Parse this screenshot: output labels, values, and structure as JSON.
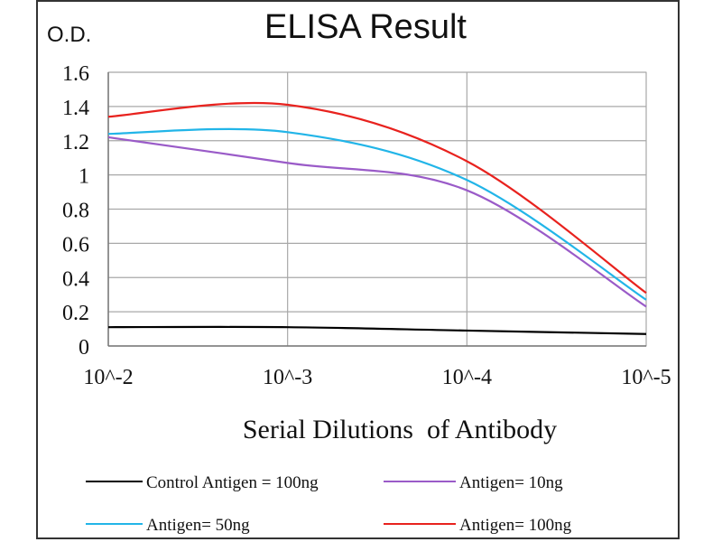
{
  "chart_data": {
    "type": "line",
    "title": "ELISA Result",
    "ylabel": "O.D.",
    "xlabel": "Serial Dilutions  of Antibody",
    "x": [
      "10^-2",
      "10^-3",
      "10^-4",
      "10^-5"
    ],
    "ylim": [
      0,
      1.6
    ],
    "yticks": [
      "0",
      "0.2",
      "0.4",
      "0.6",
      "0.8",
      "1",
      "1.2",
      "1.4",
      "1.6"
    ],
    "grid": true,
    "legend_position": "bottom",
    "series": [
      {
        "name": "Control Antigen = 100ng",
        "color": "#000000",
        "values": [
          0.11,
          0.11,
          0.09,
          0.07
        ]
      },
      {
        "name": "Antigen= 10ng",
        "color": "#9a5bc8",
        "values": [
          1.22,
          1.07,
          0.91,
          0.23
        ]
      },
      {
        "name": "Antigen= 50ng",
        "color": "#22b5e8",
        "values": [
          1.24,
          1.25,
          0.97,
          0.27
        ]
      },
      {
        "name": "Antigen= 100ng",
        "color": "#e8221e",
        "values": [
          1.34,
          1.41,
          1.08,
          0.31
        ]
      }
    ]
  }
}
